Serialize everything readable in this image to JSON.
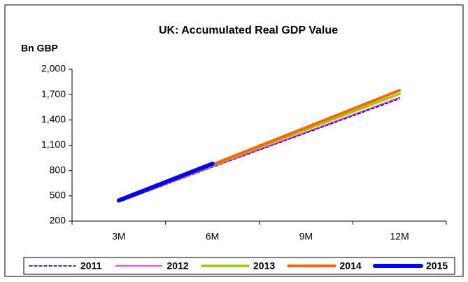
{
  "chart_data": {
    "type": "line",
    "title": "UK: Accumulated Real GDP Value",
    "y_label": "Bn GBP",
    "categories": [
      "3M",
      "6M",
      "9M",
      "12M"
    ],
    "series": [
      {
        "name": "2011",
        "color": "#000080",
        "width": 1.5,
        "dash": true,
        "values": [
          425,
          840,
          1245,
          1650
        ]
      },
      {
        "name": "2012",
        "color": "#ff00ff",
        "width": 1.5,
        "dash": false,
        "values": [
          428,
          845,
          1255,
          1665
        ]
      },
      {
        "name": "2013",
        "color": "#99cc00",
        "width": 3.5,
        "dash": false,
        "values": [
          435,
          860,
          1285,
          1710
        ]
      },
      {
        "name": "2014",
        "color": "#ff6600",
        "width": 4,
        "dash": false,
        "values": [
          440,
          870,
          1310,
          1750
        ]
      },
      {
        "name": "2015",
        "color": "#0000ff",
        "width": 6,
        "dash": false,
        "values": [
          445,
          880,
          null,
          null
        ]
      }
    ],
    "ylim": [
      200,
      2000
    ],
    "yticks": [
      200,
      500,
      800,
      {
        "value": 1100,
        "label": "1,100"
      },
      {
        "value": 1400,
        "label": "1,400"
      },
      {
        "value": 1700,
        "label": "1,700"
      },
      {
        "value": 2000,
        "label": "2,000"
      }
    ],
    "legend": "bottom"
  }
}
